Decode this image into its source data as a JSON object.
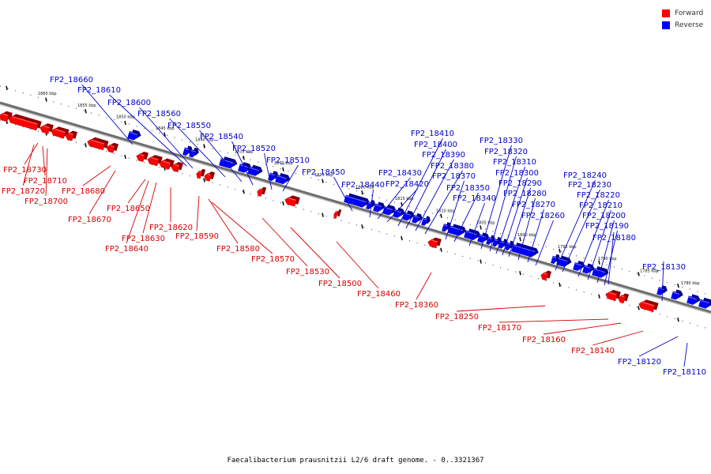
{
  "legend": {
    "forward_label": "Forward",
    "reverse_label": "Reverse",
    "forward_color": "#ff0000",
    "reverse_color": "#0000ff"
  },
  "caption": "Faecalibacterium prausnitzii L2/6 draft genome. - 0..3321367",
  "axis_ticks": [
    "1860 kbp",
    "1855 kbp",
    "1850 kbp",
    "1845 kbp",
    "1840 kbp",
    "1835 kbp",
    "1830 kbp",
    "1825 kbp",
    "1820 kbp",
    "1815 kbp",
    "1810 kbp",
    "1805 kbp",
    "1800 kbp",
    "1795 kbp",
    "1790 kbp",
    "1785 kbp",
    "1780 kbp"
  ],
  "forward_genes": [
    "FP2_18730",
    "FP2_18710",
    "FP2_18720",
    "FP2_18700",
    "FP2_18680",
    "FP2_18670",
    "FP2_18650",
    "FP2_18630",
    "FP2_18640",
    "FP2_18620",
    "FP2_18590",
    "FP2_18580",
    "FP2_18570",
    "FP2_18530",
    "FP2_18500",
    "FP2_18460",
    "FP2_18360",
    "FP2_18250",
    "FP2_18170",
    "FP2_18160",
    "FP2_18140"
  ],
  "reverse_genes": [
    "FP2_18660",
    "FP2_18610",
    "FP2_18600",
    "FP2_18560",
    "FP2_18550",
    "FP2_18540",
    "FP2_18520",
    "FP2_18510",
    "FP2_18450",
    "FP2_18440",
    "FP2_18430",
    "FP2_18420",
    "FP2_18410",
    "FP2_18400",
    "FP2_18390",
    "FP2_18380",
    "FP2_18370",
    "FP2_18350",
    "FP2_18340",
    "FP2_18330",
    "FP2_18320",
    "FP2_18310",
    "FP2_18300",
    "FP2_18290",
    "FP2_18280",
    "FP2_18270",
    "FP2_18260",
    "FP2_18240",
    "FP2_18230",
    "FP2_18220",
    "FP2_18210",
    "FP2_18200",
    "FP2_18190",
    "FP2_18180",
    "FP2_18130",
    "FP2_18120",
    "FP2_18110"
  ]
}
